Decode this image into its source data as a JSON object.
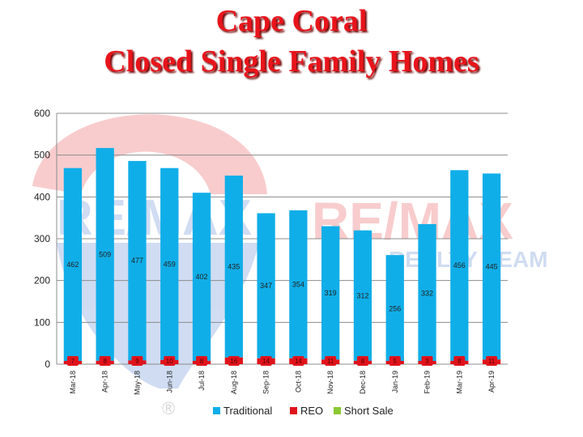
{
  "titles": {
    "line1": "Cape Coral",
    "line2": "Closed Single Family Homes"
  },
  "watermark": {
    "brand": "RE/MAX",
    "sub": "REALTY TEAM",
    "registered": "®"
  },
  "colors": {
    "traditional": "#10aee8",
    "reo": "#e0131b",
    "short_sale": "#8ac832",
    "title": "#e8141b",
    "grid": "#8c8c8c"
  },
  "chart_data": {
    "type": "bar",
    "stacked": true,
    "categories": [
      "Mar-18",
      "Apr-18",
      "May-18",
      "Jun-18",
      "Jul-18",
      "Aug-18",
      "Sep-18",
      "Oct-18",
      "Nov-18",
      "Dec-18",
      "Jan-19",
      "Feb-19",
      "Mar-19",
      "Apr-19"
    ],
    "series": [
      {
        "name": "Traditional",
        "values": [
          462,
          509,
          477,
          459,
          402,
          435,
          347,
          354,
          319,
          312,
          256,
          332,
          456,
          445
        ]
      },
      {
        "name": "REO",
        "values": [
          7,
          8,
          9,
          10,
          8,
          16,
          14,
          14,
          11,
          8,
          5,
          3,
          8,
          11
        ]
      },
      {
        "name": "Short Sale",
        "values": [
          0,
          0,
          0,
          0,
          0,
          0,
          0,
          0,
          0,
          0,
          0,
          0,
          0,
          0
        ]
      }
    ],
    "yticks": [
      0,
      100,
      200,
      300,
      400,
      500,
      600
    ],
    "ylim": [
      0,
      600
    ],
    "grid": true,
    "legend_position": "bottom"
  }
}
